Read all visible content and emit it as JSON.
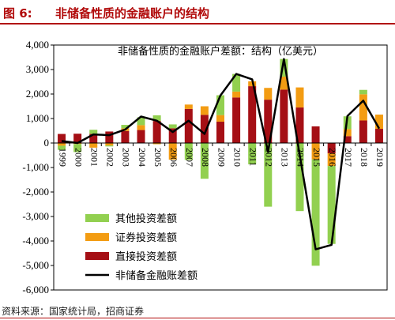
{
  "figure": {
    "label": "图 6:",
    "title": "非储备性质的金融账户的结构",
    "source": "资料来源：国家统计局，招商证券",
    "accent_color": "#b10a0a"
  },
  "chart_data": {
    "type": "bar",
    "stacked": true,
    "title": "非储备性质的金融账户差额：结构（亿美元）",
    "xlabel": "",
    "ylabel": "",
    "ylim": [
      -6000,
      4000
    ],
    "yticks": [
      -6000,
      -5000,
      -4000,
      -3000,
      -2000,
      -1000,
      0,
      1000,
      2000,
      3000,
      4000
    ],
    "ytick_labels": [
      "-6,000",
      "-5,000",
      "-4,000",
      "-3,000",
      "-2,000",
      "-1,000",
      "0",
      "1,000",
      "2,000",
      "3,000",
      "4,000"
    ],
    "categories": [
      "1999",
      "2000",
      "2001",
      "2002",
      "2003",
      "2004",
      "2005",
      "2006",
      "2007",
      "2008",
      "2009",
      "2010",
      "2011",
      "2012",
      "2013",
      "2014",
      "2015",
      "2016",
      "2017",
      "2018",
      "2019"
    ],
    "grid": false,
    "legend_position": "bottom-left",
    "series": [
      {
        "name": "直接投资差额",
        "kind": "bar",
        "color": "#a50f15",
        "values": [
          370,
          380,
          370,
          470,
          490,
          530,
          900,
          600,
          1390,
          1150,
          870,
          1860,
          2320,
          1770,
          2180,
          1450,
          680,
          -420,
          280,
          920,
          580
        ]
      },
      {
        "name": "证券投资差额",
        "kind": "bar",
        "color": "#f39c12",
        "values": [
          -110,
          -40,
          -190,
          -100,
          110,
          200,
          -50,
          -680,
          180,
          350,
          270,
          240,
          200,
          480,
          530,
          820,
          -670,
          -520,
          290,
          1070,
          580
        ]
      },
      {
        "name": "其他投资差额",
        "kind": "bar",
        "color": "#92d050",
        "values": [
          -170,
          -330,
          170,
          -40,
          140,
          320,
          230,
          160,
          -690,
          -1460,
          810,
          720,
          -870,
          -2600,
          720,
          -2780,
          -4340,
          -3180,
          520,
          180,
          0
        ]
      },
      {
        "name": "非储备金融账差额",
        "kind": "line",
        "color": "#000000",
        "values": [
          80,
          0,
          350,
          320,
          550,
          1080,
          910,
          450,
          910,
          370,
          1940,
          2820,
          2600,
          -360,
          3430,
          -510,
          -4340,
          -4160,
          1100,
          1730,
          590
        ]
      }
    ]
  }
}
